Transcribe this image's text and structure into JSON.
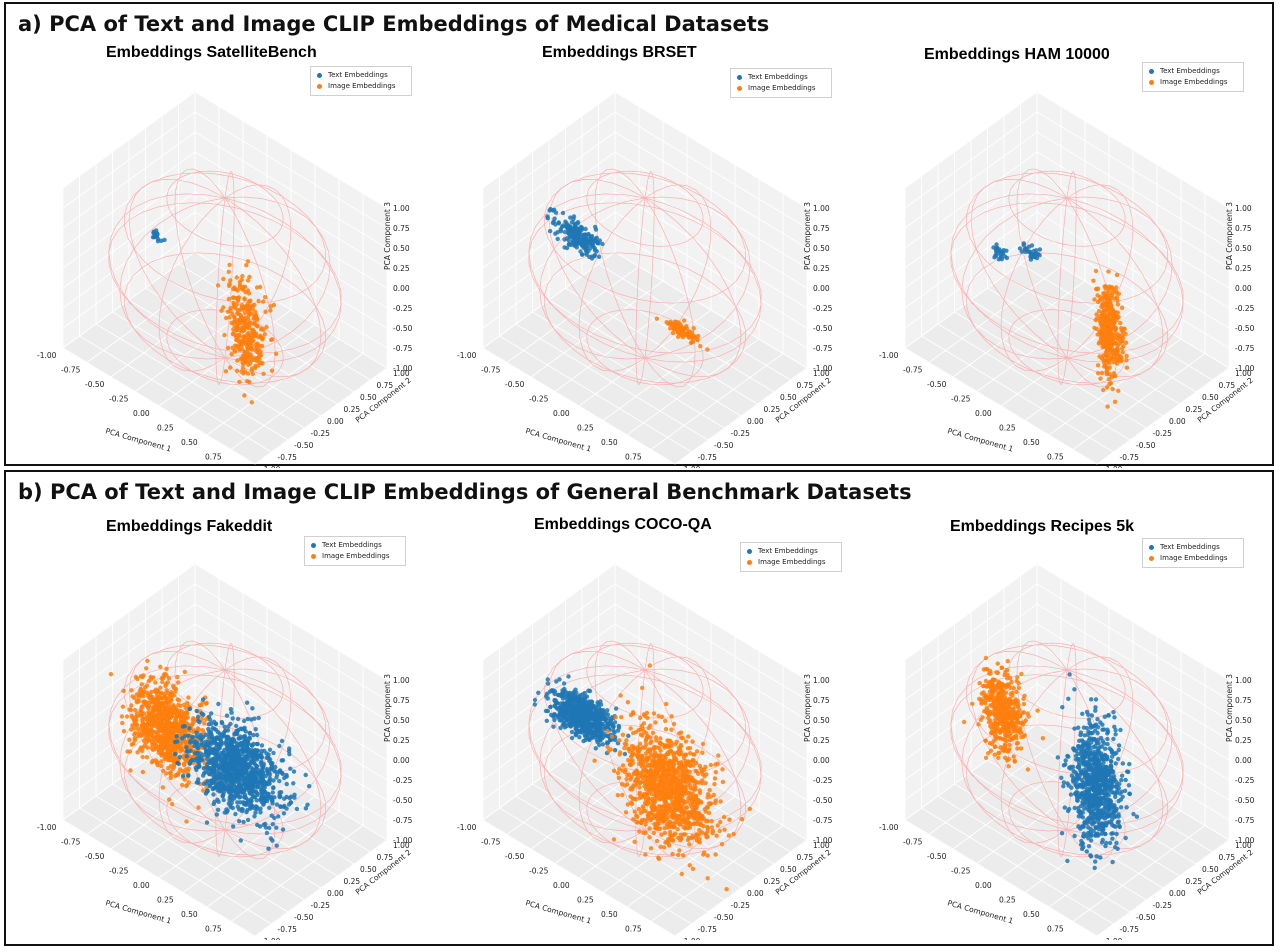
{
  "sections": [
    {
      "title": "a) PCA of Text and Image CLIP Embeddings of Medical Datasets",
      "panels": [
        {
          "title": "Embeddings  SatelliteBench"
        },
        {
          "title": "Embeddings  BRSET"
        },
        {
          "title": "Embeddings  HAM 10000"
        }
      ]
    },
    {
      "title": "b) PCA of Text and Image CLIP Embeddings of General Benchmark Datasets",
      "panels": [
        {
          "title": "Embeddings  Fakeddit"
        },
        {
          "title": "Embeddings  COCO-QA"
        },
        {
          "title": "Embeddings  Recipes 5k"
        }
      ]
    }
  ],
  "colors": {
    "text": "#1f77b4",
    "image": "#ff7f0e",
    "sphere": "#ff9a9a"
  },
  "chart_data": [
    {
      "type": "scatter",
      "title": "Embeddings  SatelliteBench",
      "xlabel": "PCA Component 1",
      "ylabel": "PCA Component 2",
      "zlabel": "PCA Component 3",
      "xlim": [
        -1,
        1
      ],
      "ylim": [
        -1,
        1
      ],
      "zlim": [
        -1,
        1
      ],
      "ticks": [
        "-1.00",
        "-0.75",
        "-0.50",
        "-0.25",
        "0.00",
        "0.25",
        "0.50",
        "0.75",
        "1.00"
      ],
      "legend": [
        "Text Embeddings",
        "Image Embeddings"
      ],
      "legend_position": "top-right",
      "grid": true,
      "series": [
        {
          "name": "Text Embeddings",
          "clusters": [
            {
              "center": [
                -0.68,
                0.0,
                0.0
              ],
              "spread": [
                0.04,
                0.04,
                0.04
              ],
              "count": 15
            }
          ]
        },
        {
          "name": "Image Embeddings",
          "clusters": [
            {
              "center": [
                0.22,
                0.0,
                -0.48
              ],
              "spread": [
                0.1,
                0.05,
                0.3
              ],
              "count": 320
            }
          ]
        }
      ]
    },
    {
      "type": "scatter",
      "title": "Embeddings  BRSET",
      "xlabel": "PCA Component 1",
      "ylabel": "PCA Component 2",
      "zlabel": "PCA Component 3",
      "xlim": [
        -1,
        1
      ],
      "ylim": [
        -1,
        1
      ],
      "zlim": [
        -1,
        1
      ],
      "ticks": [
        "-1.00",
        "-0.75",
        "-0.50",
        "-0.25",
        "0.00",
        "0.25",
        "0.50",
        "0.75",
        "1.00"
      ],
      "legend": [
        "Text Embeddings",
        "Image Embeddings"
      ],
      "legend_position": "top-right",
      "grid": true,
      "series": [
        {
          "name": "Text Embeddings",
          "clusters": [
            {
              "center": [
                -0.7,
                0.0,
                0.02
              ],
              "spread": [
                0.12,
                0.04,
                0.08
              ],
              "count": 200
            }
          ]
        },
        {
          "name": "Image Embeddings",
          "clusters": [
            {
              "center": [
                0.38,
                0.0,
                -0.38
              ],
              "spread": [
                0.09,
                0.03,
                0.025
              ],
              "count": 90
            }
          ]
        }
      ]
    },
    {
      "type": "scatter",
      "title": "Embeddings  HAM 10000",
      "xlabel": "PCA Component 1",
      "ylabel": "PCA Component 2",
      "zlabel": "PCA Component 3",
      "xlim": [
        -1,
        1
      ],
      "ylim": [
        -1,
        1
      ],
      "zlim": [
        -1,
        1
      ],
      "ticks": [
        "-1.00",
        "-0.75",
        "-0.50",
        "-0.25",
        "0.00",
        "0.25",
        "0.50",
        "0.75",
        "1.00"
      ],
      "legend": [
        "Text Embeddings",
        "Image Embeddings"
      ],
      "legend_position": "top-right",
      "grid": true,
      "series": [
        {
          "name": "Text Embeddings",
          "clusters": [
            {
              "center": [
                -0.72,
                0.0,
                -0.2
              ],
              "spread": [
                0.03,
                0.02,
                0.05
              ],
              "count": 25
            },
            {
              "center": [
                -0.38,
                0.0,
                0.05
              ],
              "spread": [
                0.04,
                0.02,
                0.05
              ],
              "count": 30
            }
          ]
        },
        {
          "name": "Image Embeddings",
          "clusters": [
            {
              "center": [
                0.45,
                0.0,
                -0.35
              ],
              "spread": [
                0.06,
                0.04,
                0.3
              ],
              "count": 380
            }
          ]
        }
      ]
    },
    {
      "type": "scatter",
      "title": "Embeddings  Fakeddit",
      "xlabel": "PCA Component 1",
      "ylabel": "PCA Component 2",
      "zlabel": "PCA Component 3",
      "xlim": [
        -1,
        1
      ],
      "ylim": [
        -1,
        1
      ],
      "zlim": [
        -1,
        1
      ],
      "ticks": [
        "-1.00",
        "-0.75",
        "-0.50",
        "-0.25",
        "0.00",
        "0.25",
        "0.50",
        "0.75",
        "1.00"
      ],
      "legend": [
        "Text Embeddings",
        "Image Embeddings"
      ],
      "legend_position": "top-right",
      "grid": true,
      "series": [
        {
          "name": "Image Embeddings",
          "clusters": [
            {
              "center": [
                -0.6,
                0.0,
                -0.15
              ],
              "spread": [
                0.17,
                0.08,
                0.25
              ],
              "count": 900
            }
          ]
        },
        {
          "name": "Text Embeddings",
          "clusters": [
            {
              "center": [
                0.12,
                0.0,
                -0.15
              ],
              "spread": [
                0.22,
                0.1,
                0.25
              ],
              "count": 1100
            }
          ]
        }
      ]
    },
    {
      "type": "scatter",
      "title": "Embeddings  COCO-QA",
      "xlabel": "PCA Component 1",
      "ylabel": "PCA Component 2",
      "zlabel": "PCA Component 3",
      "xlim": [
        -1,
        1
      ],
      "ylim": [
        -1,
        1
      ],
      "zlim": [
        -1,
        1
      ],
      "ticks": [
        "-1.00",
        "-0.75",
        "-0.50",
        "-0.25",
        "0.00",
        "0.25",
        "0.50",
        "0.75",
        "1.00"
      ],
      "legend": [
        "Text Embeddings",
        "Image Embeddings"
      ],
      "legend_position": "top-right",
      "grid": true,
      "series": [
        {
          "name": "Text Embeddings",
          "clusters": [
            {
              "center": [
                -0.65,
                0.0,
                -0.05
              ],
              "spread": [
                0.16,
                0.07,
                0.1
              ],
              "count": 700
            }
          ]
        },
        {
          "name": "Image Embeddings",
          "clusters": [
            {
              "center": [
                0.25,
                0.0,
                -0.3
              ],
              "spread": [
                0.22,
                0.1,
                0.35
              ],
              "count": 1100
            }
          ]
        }
      ]
    },
    {
      "type": "scatter",
      "title": "Embeddings  Recipes 5k",
      "xlabel": "PCA Component 1",
      "ylabel": "PCA Component 2",
      "zlabel": "PCA Component 3",
      "xlim": [
        -1,
        1
      ],
      "ylim": [
        -1,
        1
      ],
      "zlim": [
        -1,
        1
      ],
      "ticks": [
        "-1.00",
        "-0.75",
        "-0.50",
        "-0.25",
        "0.00",
        "0.25",
        "0.50",
        "0.75",
        "1.00"
      ],
      "legend": [
        "Text Embeddings",
        "Image Embeddings"
      ],
      "legend_position": "top-right",
      "grid": true,
      "series": [
        {
          "name": "Image Embeddings",
          "clusters": [
            {
              "center": [
                -0.68,
                0.0,
                0.0
              ],
              "spread": [
                0.1,
                0.06,
                0.25
              ],
              "count": 450
            }
          ]
        },
        {
          "name": "Text Embeddings",
          "clusters": [
            {
              "center": [
                0.3,
                0.0,
                -0.22
              ],
              "spread": [
                0.12,
                0.08,
                0.37
              ],
              "count": 800
            }
          ]
        }
      ]
    }
  ]
}
